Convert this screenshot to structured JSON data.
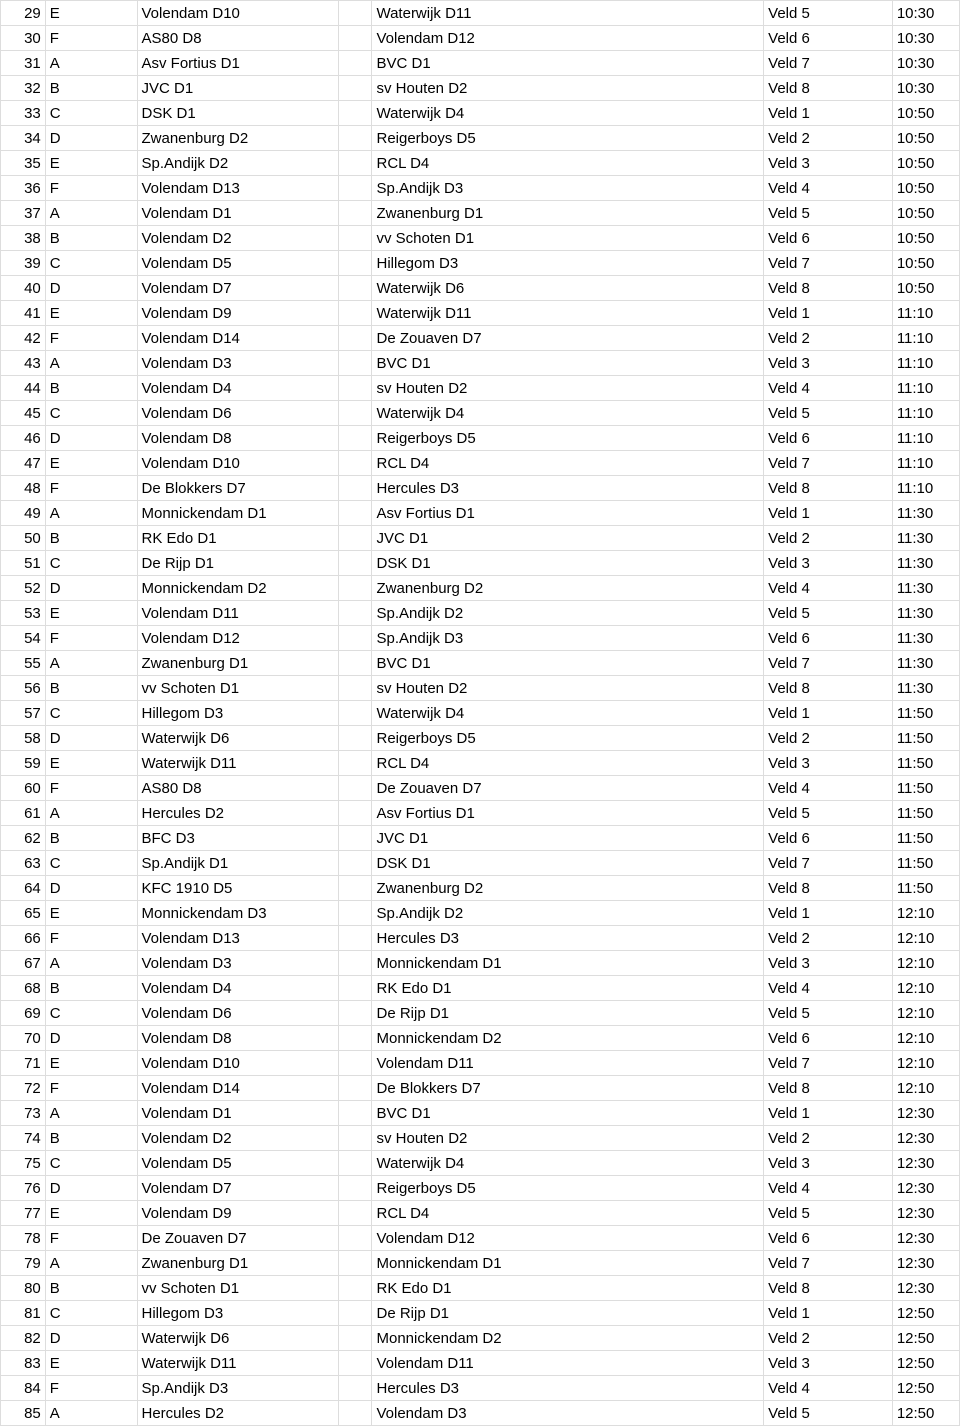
{
  "table": {
    "columns": [
      "num",
      "group",
      "home",
      "gap",
      "away",
      "veld",
      "time"
    ],
    "rows": [
      [
        "29",
        "E",
        "Volendam D10",
        "",
        "Waterwijk D11",
        "Veld 5",
        "10:30"
      ],
      [
        "30",
        "F",
        "AS80 D8",
        "",
        "Volendam D12",
        "Veld 6",
        "10:30"
      ],
      [
        "31",
        "A",
        "Asv Fortius D1",
        "",
        "BVC D1",
        "Veld 7",
        "10:30"
      ],
      [
        "32",
        "B",
        "JVC D1",
        "",
        "sv Houten D2",
        "Veld 8",
        "10:30"
      ],
      [
        "33",
        "C",
        "DSK D1",
        "",
        "Waterwijk D4",
        "Veld 1",
        "10:50"
      ],
      [
        "34",
        "D",
        "Zwanenburg D2",
        "",
        "Reigerboys D5",
        "Veld 2",
        "10:50"
      ],
      [
        "35",
        "E",
        "Sp.Andijk D2",
        "",
        "RCL D4",
        "Veld 3",
        "10:50"
      ],
      [
        "36",
        "F",
        "Volendam D13",
        "",
        "Sp.Andijk D3",
        "Veld 4",
        "10:50"
      ],
      [
        "37",
        "A",
        "Volendam D1",
        "",
        "Zwanenburg D1",
        "Veld 5",
        "10:50"
      ],
      [
        "38",
        "B",
        "Volendam D2",
        "",
        "vv Schoten D1",
        "Veld 6",
        "10:50"
      ],
      [
        "39",
        "C",
        "Volendam D5",
        "",
        "Hillegom D3",
        "Veld 7",
        "10:50"
      ],
      [
        "40",
        "D",
        "Volendam D7",
        "",
        "Waterwijk D6",
        "Veld 8",
        "10:50"
      ],
      [
        "41",
        "E",
        "Volendam D9",
        "",
        "Waterwijk D11",
        "Veld 1",
        "11:10"
      ],
      [
        "42",
        "F",
        "Volendam D14",
        "",
        "De Zouaven D7",
        "Veld 2",
        "11:10"
      ],
      [
        "43",
        "A",
        "Volendam D3",
        "",
        "BVC D1",
        "Veld 3",
        "11:10"
      ],
      [
        "44",
        "B",
        "Volendam D4",
        "",
        "sv Houten D2",
        "Veld 4",
        "11:10"
      ],
      [
        "45",
        "C",
        "Volendam D6",
        "",
        "Waterwijk D4",
        "Veld 5",
        "11:10"
      ],
      [
        "46",
        "D",
        "Volendam D8",
        "",
        "Reigerboys D5",
        "Veld 6",
        "11:10"
      ],
      [
        "47",
        "E",
        "Volendam D10",
        "",
        "RCL D4",
        "Veld 7",
        "11:10"
      ],
      [
        "48",
        "F",
        "De Blokkers D7",
        "",
        "Hercules D3",
        "Veld 8",
        "11:10"
      ],
      [
        "49",
        "A",
        "Monnickendam D1",
        "",
        "Asv Fortius D1",
        "Veld 1",
        "11:30"
      ],
      [
        "50",
        "B",
        "RK Edo D1",
        "",
        "JVC D1",
        "Veld 2",
        "11:30"
      ],
      [
        "51",
        "C",
        "De Rijp D1",
        "",
        "DSK D1",
        "Veld 3",
        "11:30"
      ],
      [
        "52",
        "D",
        "Monnickendam D2",
        "",
        "Zwanenburg D2",
        "Veld 4",
        "11:30"
      ],
      [
        "53",
        "E",
        "Volendam D11",
        "",
        "Sp.Andijk D2",
        "Veld 5",
        "11:30"
      ],
      [
        "54",
        "F",
        "Volendam D12",
        "",
        "Sp.Andijk D3",
        "Veld 6",
        "11:30"
      ],
      [
        "55",
        "A",
        "Zwanenburg D1",
        "",
        "BVC D1",
        "Veld 7",
        "11:30"
      ],
      [
        "56",
        "B",
        "vv Schoten D1",
        "",
        "sv Houten D2",
        "Veld 8",
        "11:30"
      ],
      [
        "57",
        "C",
        "Hillegom D3",
        "",
        "Waterwijk D4",
        "Veld 1",
        "11:50"
      ],
      [
        "58",
        "D",
        "Waterwijk D6",
        "",
        "Reigerboys D5",
        "Veld 2",
        "11:50"
      ],
      [
        "59",
        "E",
        "Waterwijk D11",
        "",
        "RCL D4",
        "Veld 3",
        "11:50"
      ],
      [
        "60",
        "F",
        "AS80 D8",
        "",
        "De Zouaven D7",
        "Veld 4",
        "11:50"
      ],
      [
        "61",
        "A",
        "Hercules D2",
        "",
        "Asv Fortius D1",
        "Veld 5",
        "11:50"
      ],
      [
        "62",
        "B",
        "BFC D3",
        "",
        "JVC D1",
        "Veld 6",
        "11:50"
      ],
      [
        "63",
        "C",
        "Sp.Andijk D1",
        "",
        "DSK D1",
        "Veld 7",
        "11:50"
      ],
      [
        "64",
        "D",
        "KFC 1910 D5",
        "",
        "Zwanenburg D2",
        "Veld 8",
        "11:50"
      ],
      [
        "65",
        "E",
        "Monnickendam D3",
        "",
        "Sp.Andijk D2",
        "Veld 1",
        "12:10"
      ],
      [
        "66",
        "F",
        "Volendam D13",
        "",
        "Hercules D3",
        "Veld 2",
        "12:10"
      ],
      [
        "67",
        "A",
        "Volendam D3",
        "",
        "Monnickendam D1",
        "Veld 3",
        "12:10"
      ],
      [
        "68",
        "B",
        "Volendam D4",
        "",
        "RK Edo D1",
        "Veld 4",
        "12:10"
      ],
      [
        "69",
        "C",
        "Volendam D6",
        "",
        "De Rijp D1",
        "Veld 5",
        "12:10"
      ],
      [
        "70",
        "D",
        "Volendam D8",
        "",
        "Monnickendam D2",
        "Veld 6",
        "12:10"
      ],
      [
        "71",
        "E",
        "Volendam D10",
        "",
        "Volendam D11",
        "Veld 7",
        "12:10"
      ],
      [
        "72",
        "F",
        "Volendam D14",
        "",
        "De Blokkers D7",
        "Veld 8",
        "12:10"
      ],
      [
        "73",
        "A",
        "Volendam D1",
        "",
        "BVC D1",
        "Veld 1",
        "12:30"
      ],
      [
        "74",
        "B",
        "Volendam D2",
        "",
        "sv Houten D2",
        "Veld 2",
        "12:30"
      ],
      [
        "75",
        "C",
        "Volendam D5",
        "",
        "Waterwijk D4",
        "Veld 3",
        "12:30"
      ],
      [
        "76",
        "D",
        "Volendam D7",
        "",
        "Reigerboys D5",
        "Veld 4",
        "12:30"
      ],
      [
        "77",
        "E",
        "Volendam D9",
        "",
        "RCL D4",
        "Veld 5",
        "12:30"
      ],
      [
        "78",
        "F",
        "De Zouaven D7",
        "",
        "Volendam D12",
        "Veld 6",
        "12:30"
      ],
      [
        "79",
        "A",
        "Zwanenburg D1",
        "",
        "Monnickendam D1",
        "Veld 7",
        "12:30"
      ],
      [
        "80",
        "B",
        "vv Schoten D1",
        "",
        "RK Edo D1",
        "Veld 8",
        "12:30"
      ],
      [
        "81",
        "C",
        "Hillegom D3",
        "",
        "De Rijp D1",
        "Veld 1",
        "12:50"
      ],
      [
        "82",
        "D",
        "Waterwijk D6",
        "",
        "Monnickendam D2",
        "Veld 2",
        "12:50"
      ],
      [
        "83",
        "E",
        "Waterwijk D11",
        "",
        "Volendam D11",
        "Veld 3",
        "12:50"
      ],
      [
        "84",
        "F",
        "Sp.Andijk D3",
        "",
        "Hercules D3",
        "Veld 4",
        "12:50"
      ],
      [
        "85",
        "A",
        "Hercules D2",
        "",
        "Volendam D3",
        "Veld 5",
        "12:50"
      ]
    ]
  }
}
